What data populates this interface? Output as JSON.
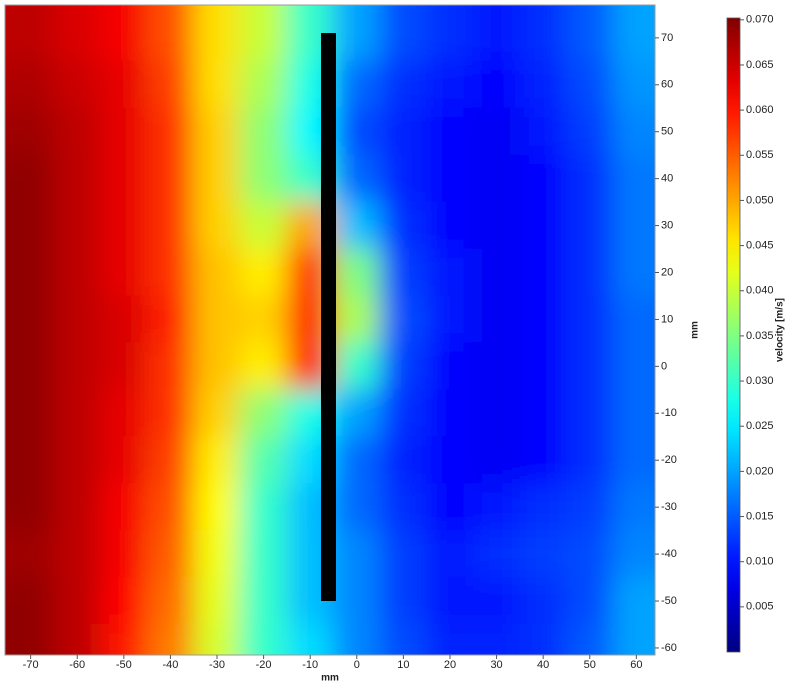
{
  "chart_data": {
    "type": "heatmap",
    "colormap": "jet",
    "xlabel": "mm",
    "ylabel": "mm",
    "colorbar_label": "velocity [m/s]",
    "xlim": [
      -75.5,
      64
    ],
    "ylim": [
      -61.5,
      77
    ],
    "xticks": [
      -70,
      -60,
      -50,
      -40,
      -30,
      -20,
      -10,
      0,
      10,
      20,
      30,
      40,
      50,
      60
    ],
    "yticks": [
      -60,
      -50,
      -40,
      -30,
      -20,
      -10,
      0,
      10,
      20,
      30,
      40,
      50,
      60,
      70
    ],
    "clim": [
      0,
      0.0702
    ],
    "cticks": [
      0.005,
      {
        "value": 0.01,
        "label": "0.010"
      },
      0.015,
      {
        "value": 0.02,
        "label": "0.020"
      },
      0.025,
      {
        "value": 0.03,
        "label": "0.030"
      },
      0.035,
      {
        "value": 0.04,
        "label": "0.040"
      },
      0.045,
      {
        "value": 0.05,
        "label": "0.050"
      },
      0.055,
      {
        "value": 0.06,
        "label": "0.060"
      },
      0.065,
      {
        "value": 0.07,
        "label": "0.070"
      }
    ],
    "x": [
      -70,
      -60,
      -50,
      -40,
      -30,
      -20,
      -10,
      0,
      10,
      20,
      30,
      40,
      50,
      60
    ],
    "y": [
      70,
      60,
      50,
      40,
      30,
      20,
      10,
      0,
      -10,
      -20,
      -30,
      -40,
      -50,
      -60
    ],
    "values": [
      [
        0.066,
        0.064,
        0.062,
        0.056,
        0.046,
        0.04,
        0.03,
        0.02,
        0.014,
        0.012,
        0.01,
        0.012,
        0.015,
        0.02
      ],
      [
        0.067,
        0.065,
        0.063,
        0.057,
        0.046,
        0.038,
        0.028,
        0.016,
        0.012,
        0.01,
        0.009,
        0.011,
        0.014,
        0.019
      ],
      [
        0.068,
        0.066,
        0.063,
        0.058,
        0.047,
        0.036,
        0.026,
        0.014,
        0.011,
        0.009,
        0.008,
        0.01,
        0.013,
        0.018
      ],
      [
        0.069,
        0.066,
        0.063,
        0.058,
        0.047,
        0.036,
        0.03,
        0.016,
        0.011,
        0.009,
        0.008,
        0.009,
        0.012,
        0.017
      ],
      [
        0.069,
        0.066,
        0.063,
        0.058,
        0.047,
        0.04,
        0.05,
        0.022,
        0.012,
        0.009,
        0.008,
        0.009,
        0.012,
        0.017
      ],
      [
        0.069,
        0.066,
        0.063,
        0.058,
        0.048,
        0.045,
        0.058,
        0.035,
        0.013,
        0.01,
        0.008,
        0.009,
        0.012,
        0.017
      ],
      [
        0.069,
        0.066,
        0.064,
        0.059,
        0.048,
        0.047,
        0.059,
        0.038,
        0.014,
        0.01,
        0.008,
        0.009,
        0.012,
        0.016
      ],
      [
        0.069,
        0.066,
        0.064,
        0.058,
        0.048,
        0.045,
        0.06,
        0.03,
        0.013,
        0.009,
        0.008,
        0.009,
        0.012,
        0.016
      ],
      [
        0.069,
        0.066,
        0.063,
        0.058,
        0.047,
        0.036,
        0.028,
        0.02,
        0.012,
        0.009,
        0.008,
        0.009,
        0.012,
        0.016
      ],
      [
        0.069,
        0.066,
        0.063,
        0.057,
        0.045,
        0.032,
        0.024,
        0.016,
        0.011,
        0.009,
        0.008,
        0.009,
        0.012,
        0.016
      ],
      [
        0.069,
        0.066,
        0.062,
        0.056,
        0.044,
        0.03,
        0.022,
        0.016,
        0.012,
        0.009,
        0.01,
        0.012,
        0.013,
        0.017
      ],
      [
        0.068,
        0.066,
        0.062,
        0.055,
        0.043,
        0.03,
        0.022,
        0.018,
        0.013,
        0.01,
        0.012,
        0.013,
        0.014,
        0.018
      ],
      [
        0.069,
        0.066,
        0.061,
        0.054,
        0.042,
        0.03,
        0.022,
        0.018,
        0.013,
        0.01,
        0.01,
        0.012,
        0.014,
        0.02
      ],
      [
        0.069,
        0.066,
        0.06,
        0.053,
        0.041,
        0.03,
        0.024,
        0.018,
        0.014,
        0.011,
        0.011,
        0.012,
        0.015,
        0.02
      ]
    ]
  }
}
